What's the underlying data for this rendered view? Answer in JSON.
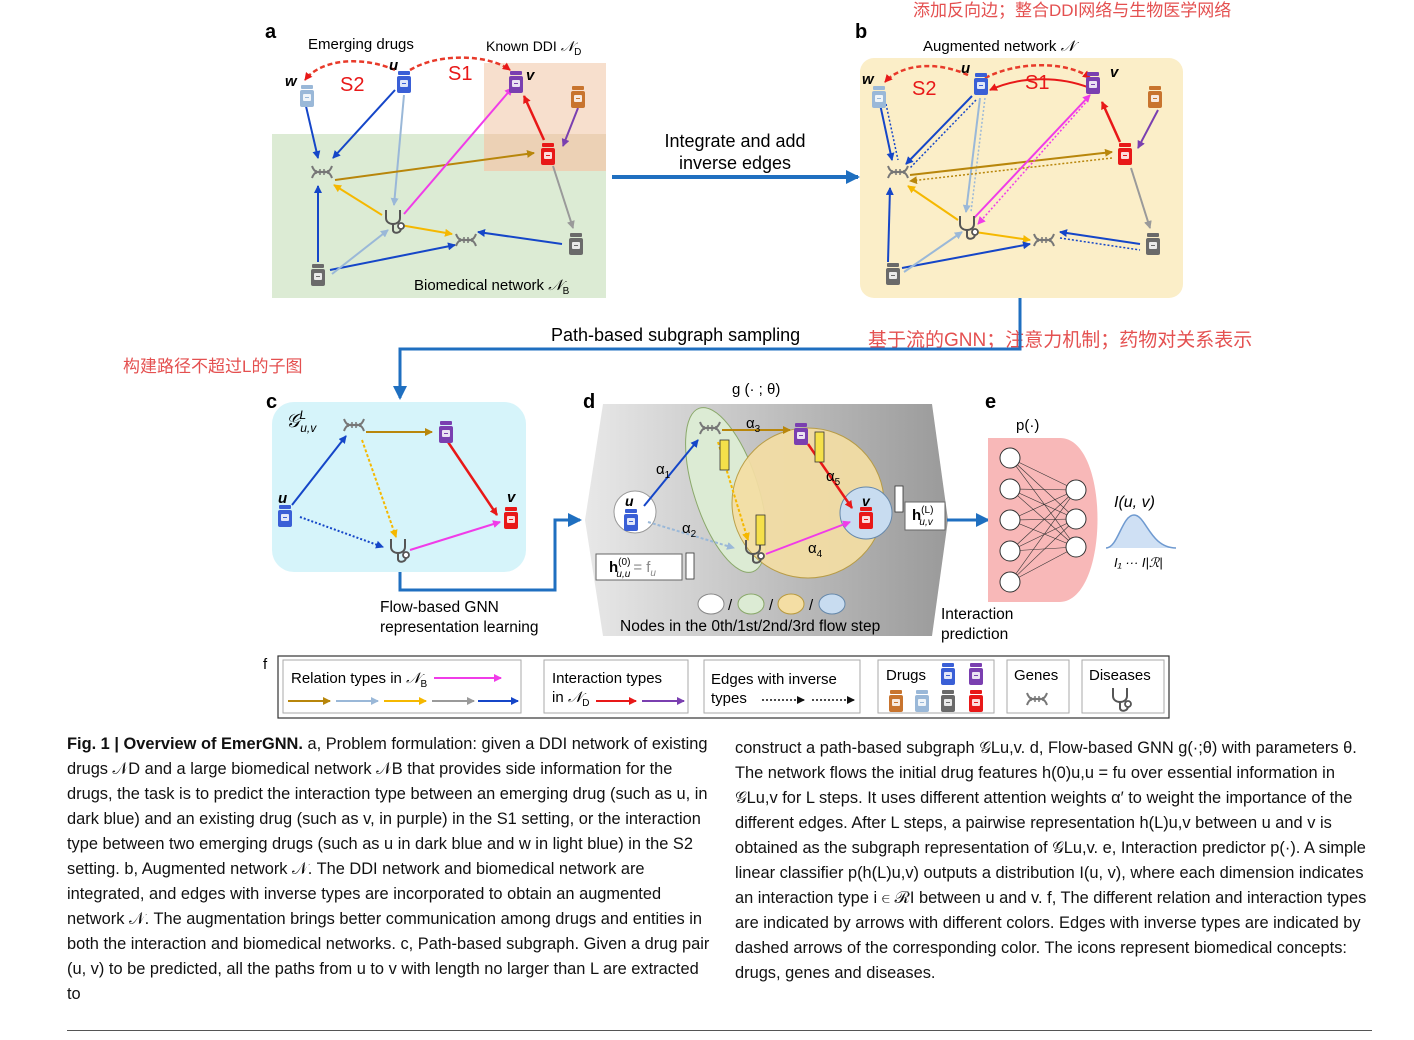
{
  "panel_letters": {
    "a": "a",
    "b": "b",
    "c": "c",
    "d": "d",
    "e": "e",
    "f": "f"
  },
  "panel_a": {
    "emerging_label": "Emerging drugs",
    "known_label": "Known DDI",
    "known_sub": "D",
    "biomed_label": "Biomedical network",
    "biomed_sub": "B",
    "node_w": "w",
    "node_u": "u",
    "node_v": "v",
    "s1": "S1",
    "s2": "S2"
  },
  "panel_b": {
    "title": "Augmented network",
    "node_w": "w",
    "node_u": "u",
    "node_v": "v",
    "s1": "S1",
    "s2": "S2"
  },
  "annotations": {
    "top_right": "添加反向边；整合DDI网络与生物医学网络",
    "mid_right": "基于流的GNN；注意力机制；药物对关系表示",
    "mid_left": "构建路径不超过L的子图"
  },
  "flow_labels": {
    "integrate_line1": "Integrate and add",
    "integrate_line2": "inverse edges",
    "sampling": "Path-based subgraph sampling",
    "flow_gnn_line1": "Flow-based GNN",
    "flow_gnn_line2": "representation learning",
    "interaction_line1": "Interaction",
    "interaction_line2": "prediction"
  },
  "panel_c": {
    "subgraph": "𝒢",
    "node_u": "u",
    "node_v": "v"
  },
  "panel_d": {
    "g_label": "g (· ; θ)",
    "alpha": [
      "α",
      "α",
      "α",
      "α",
      "α"
    ],
    "alpha_sub": [
      "1",
      "2",
      "3",
      "4",
      "5"
    ],
    "node_u": "u",
    "node_v": "v",
    "h0_label": "h",
    "h0_eq": "= f",
    "h0_sub": "u",
    "hl_label": "h",
    "flow_steps": "Nodes in the 0th/1st/2nd/3rd flow step",
    "flow_slash": "/"
  },
  "panel_e": {
    "p_label": "p(·)",
    "output_label": "I(u, v)",
    "range_label": "I₁ ··· I|ℛ|"
  },
  "legend": {
    "relation_types": "Relation types in",
    "relation_sub": "B",
    "interaction_types_line1": "Interaction types",
    "interaction_types_line2": "in",
    "interaction_sub": "D",
    "inverse_line1": "Edges with inverse",
    "inverse_line2": "types",
    "drugs": "Drugs",
    "genes": "Genes",
    "diseases": "Diseases"
  },
  "colors": {
    "blue": "#1546c8",
    "light_blue": "#9ab8d8",
    "gold": "#b8860b",
    "yellow": "#f5b800",
    "gray": "#9a9a9a",
    "magenta": "#f03ce8",
    "red": "#e81818",
    "purple": "#7a3fb0",
    "dashed_red": "#e83a2a",
    "annotation_red": "#e45050",
    "flow_arrow": "#1f6fc0",
    "green_bg": "#dcebd4",
    "orange_bg": "#f6dcc8",
    "augment_bg": "#fbeec8",
    "cyan_bg": "#d6f4fa"
  },
  "icons": [
    "drug-bottle-icon",
    "dna-gene-icon",
    "stethoscope-disease-icon"
  ],
  "caption_left": {
    "fig_label": "Fig. 1 | Overview of EmerGNN.",
    "text": " a, Problem formulation: given a DDI network of existing drugs 𝒩D and a large biomedical network 𝒩B that provides side information for the drugs, the task is to predict the interaction type between an emerging drug (such as u, in dark blue) and an existing drug (such as v, in purple) in the S1 setting, or the interaction type between two emerging drugs (such as u in dark blue and w in light blue) in the S2 setting. b, Augmented network 𝒩. The DDI network and biomedical network are integrated, and edges with inverse types are incorporated to obtain an augmented network 𝒩. The augmentation brings better communication among drugs and entities in both the interaction and biomedical networks. c, Path-based subgraph. Given a drug pair (u, v) to be predicted, all the paths from u to v with length no larger than L are extracted to"
  },
  "caption_right": {
    "text": "construct a path-based subgraph 𝒢Lu,v. d, Flow-based GNN g(·;θ) with parameters θ. The network flows the initial drug features h(0)u,u = fu over essential information in 𝒢Lu,v for L steps. It uses different attention weights α′ to weight the importance of the different edges. After L steps, a pairwise representation h(L)u,v between u and v is obtained as the subgraph representation of 𝒢Lu,v. e, Interaction predictor p(·). A simple linear classifier p(h(L)u,v) outputs a distribution I(u, v), where each dimension indicates an interaction type i ∈ ℛI between u and v. f, The different relation and interaction types are indicated by arrows with different colors. Edges with inverse types are indicated by dashed arrows of the corresponding color. The icons represent biomedical concepts: drugs, genes and diseases."
  }
}
